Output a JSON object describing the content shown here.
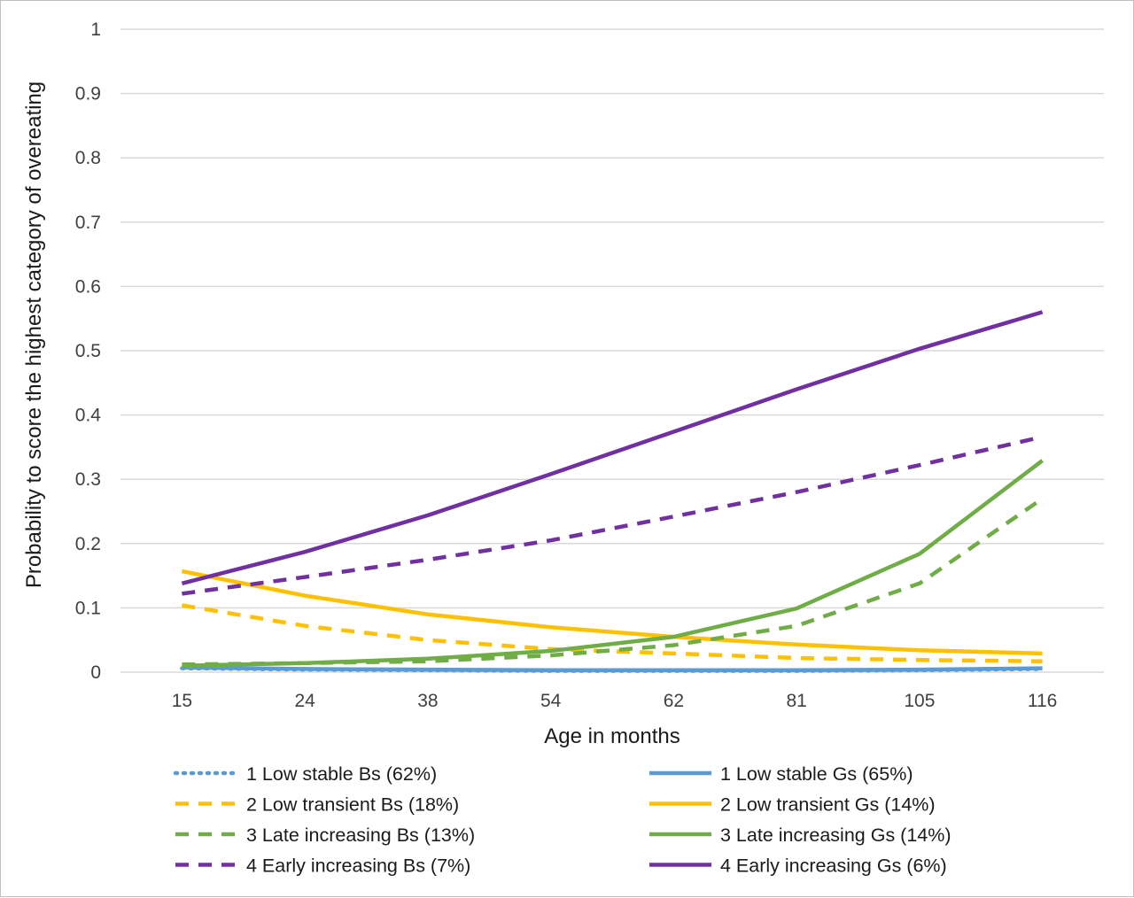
{
  "chart_data": {
    "type": "line",
    "xlabel": "Age in months",
    "ylabel": "Probability to score the highest category of overeating",
    "categories": [
      "15",
      "24",
      "38",
      "54",
      "62",
      "81",
      "105",
      "116"
    ],
    "ylim": [
      0,
      1
    ],
    "yticks": [
      "0",
      "0.1",
      "0.2",
      "0.3",
      "0.4",
      "0.5",
      "0.6",
      "0.7",
      "0.8",
      "0.9",
      "1"
    ],
    "grid": "horizontal",
    "legend_position": "bottom",
    "series": [
      {
        "name": "1 Low stable Bs (62%)",
        "color": "#5b9bd5",
        "style": "dotted",
        "values": [
          0.006,
          0.004,
          0.003,
          0.002,
          0.002,
          0.002,
          0.003,
          0.005
        ]
      },
      {
        "name": "1 Low stable Gs (65%)",
        "color": "#5b9bd5",
        "style": "solid",
        "values": [
          0.007,
          0.005,
          0.004,
          0.003,
          0.003,
          0.003,
          0.004,
          0.006
        ]
      },
      {
        "name": "2 Low transient Bs (18%)",
        "color": "#ffc000",
        "style": "dashed",
        "values": [
          0.104,
          0.072,
          0.05,
          0.036,
          0.029,
          0.022,
          0.019,
          0.017
        ]
      },
      {
        "name": "2 Low transient Gs (14%)",
        "color": "#ffc000",
        "style": "solid",
        "values": [
          0.157,
          0.119,
          0.09,
          0.07,
          0.055,
          0.043,
          0.034,
          0.029
        ]
      },
      {
        "name": "3 Late increasing Bs (13%)",
        "color": "#70ad47",
        "style": "dashed",
        "values": [
          0.012,
          0.014,
          0.017,
          0.026,
          0.042,
          0.072,
          0.138,
          0.27
        ]
      },
      {
        "name": "3 Late increasing Gs (14%)",
        "color": "#70ad47",
        "style": "solid",
        "values": [
          0.01,
          0.014,
          0.021,
          0.033,
          0.055,
          0.099,
          0.184,
          0.329
        ]
      },
      {
        "name": "4 Early increasing Bs (7%)",
        "color": "#7030a0",
        "style": "dashed",
        "values": [
          0.122,
          0.148,
          0.175,
          0.205,
          0.242,
          0.28,
          0.322,
          0.366
        ]
      },
      {
        "name": "4 Early increasing Gs (6%)",
        "color": "#7030a0",
        "style": "solid",
        "values": [
          0.138,
          0.187,
          0.244,
          0.308,
          0.374,
          0.44,
          0.503,
          0.56
        ]
      }
    ]
  }
}
